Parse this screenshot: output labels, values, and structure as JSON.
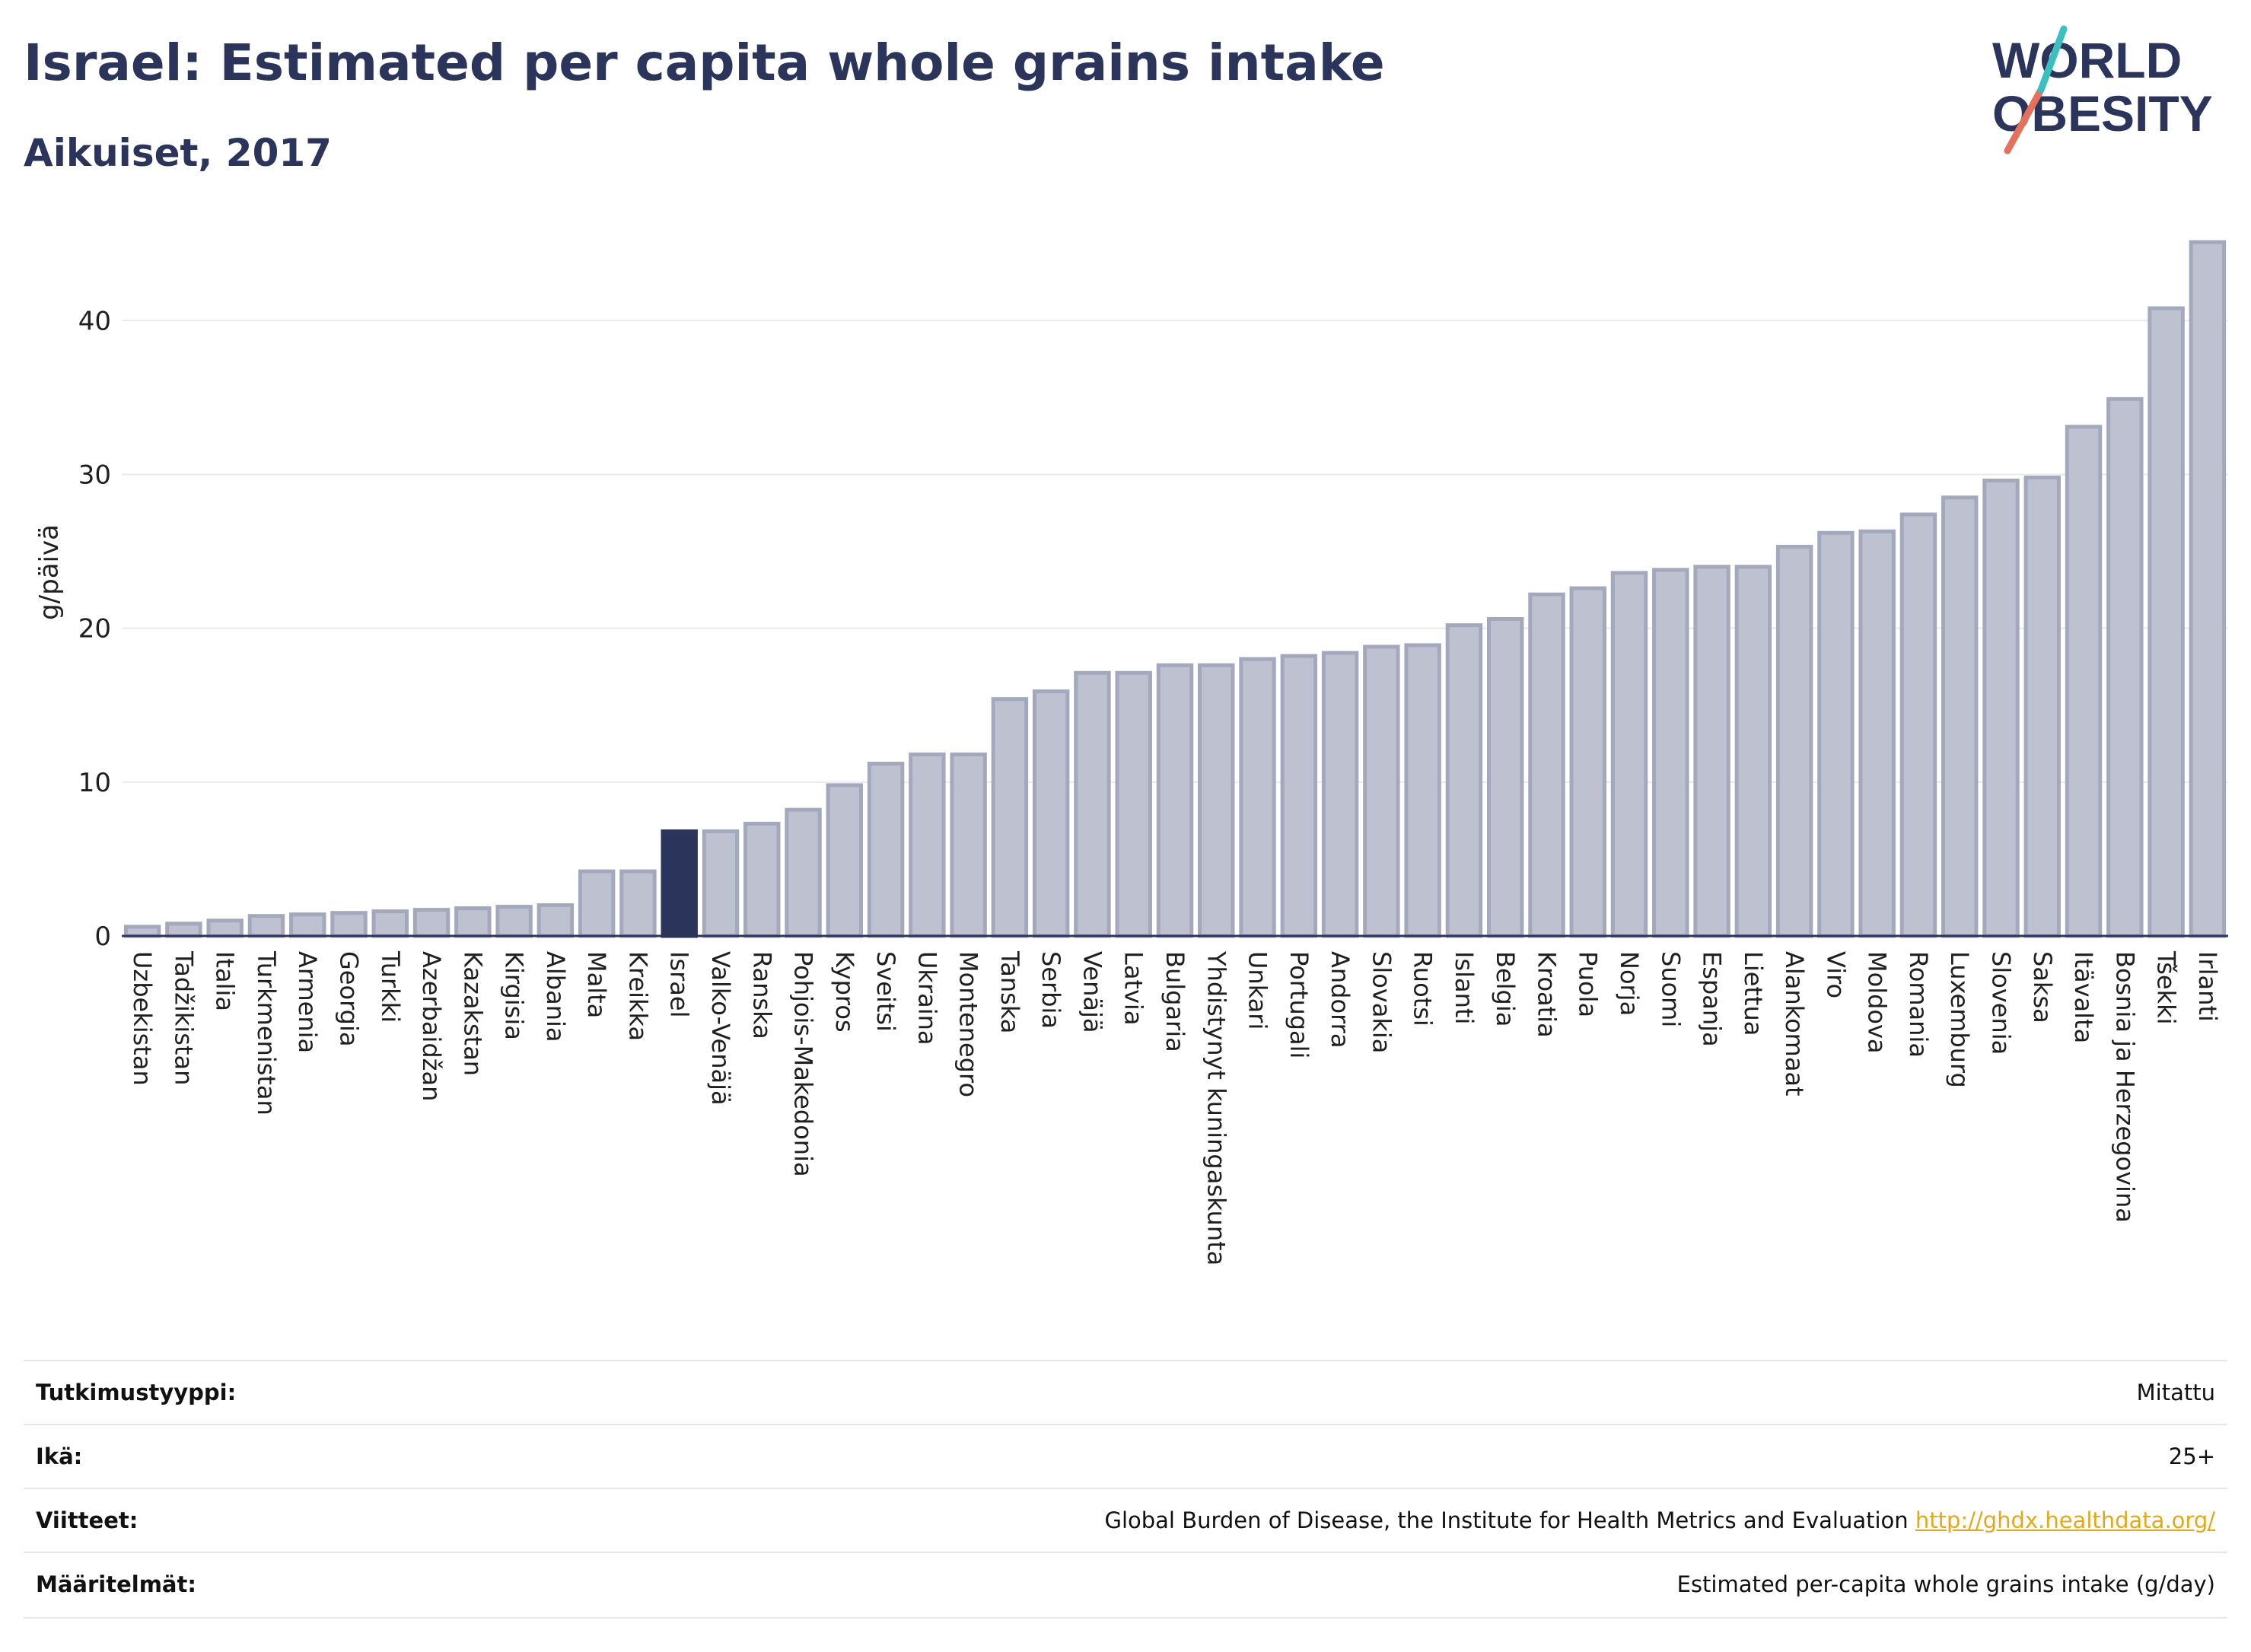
{
  "header": {
    "title": "Israel: Estimated per capita whole grains intake",
    "subtitle": "Aikuiset, 2017"
  },
  "logo": {
    "line1": "WORLD",
    "line2": "OBESITY"
  },
  "colors": {
    "highlight": "#2b355c",
    "bar_fill": "#bec1cf",
    "bar_stroke": "#a3a8bd",
    "grid": "#e8e9ee"
  },
  "chart_data": {
    "type": "bar",
    "ylabel": "g/päivä",
    "ylim": [
      0,
      46
    ],
    "yticks": [
      0,
      10,
      20,
      30,
      40
    ],
    "highlight": "Israel",
    "categories": [
      "Uzbekistan",
      "Tadžikistan",
      "Italia",
      "Turkmenistan",
      "Armenia",
      "Georgia",
      "Turkki",
      "Azerbaidžan",
      "Kazakstan",
      "Kirgisia",
      "Albania",
      "Malta",
      "Kreikka",
      "Israel",
      "Valko-Venäjä",
      "Ranska",
      "Pohjois-Makedonia",
      "Kypros",
      "Sveitsi",
      "Ukraina",
      "Montenegro",
      "Tanska",
      "Serbia",
      "Venäjä",
      "Latvia",
      "Bulgaria",
      "Yhdistynyt kuningaskunta",
      "Unkari",
      "Portugali",
      "Andorra",
      "Slovakia",
      "Ruotsi",
      "Islanti",
      "Belgia",
      "Kroatia",
      "Puola",
      "Norja",
      "Suomi",
      "Espanja",
      "Liettua",
      "Alankomaat",
      "Viro",
      "Moldova",
      "Romania",
      "Luxemburg",
      "Slovenia",
      "Saksa",
      "Itävalta",
      "Bosnia ja Herzegovina",
      "Tšekki",
      "Irlanti"
    ],
    "values": [
      0.6,
      0.8,
      1.0,
      1.3,
      1.4,
      1.5,
      1.6,
      1.7,
      1.8,
      1.9,
      2.0,
      4.2,
      4.2,
      6.8,
      6.8,
      7.3,
      8.2,
      9.8,
      11.2,
      11.8,
      11.8,
      15.4,
      15.9,
      17.1,
      17.1,
      17.6,
      17.6,
      18.0,
      18.2,
      18.4,
      18.8,
      18.9,
      20.2,
      20.6,
      22.2,
      22.6,
      23.6,
      23.8,
      24.0,
      24.0,
      25.3,
      26.2,
      26.3,
      27.4,
      28.5,
      29.6,
      29.8,
      33.1,
      34.9,
      40.8,
      45.1
    ]
  },
  "meta": {
    "rows": [
      {
        "label": "Tutkimustyyppi:",
        "value": "Mitattu"
      },
      {
        "label": "Ikä:",
        "value": "25+"
      },
      {
        "label": "Viitteet:",
        "value": "Global Burden of Disease, the Institute for Health Metrics and Evaluation",
        "link": "http://ghdx.healthdata.org/"
      },
      {
        "label": "Määritelmät:",
        "value": "Estimated per-capita whole grains intake (g/day)"
      }
    ]
  }
}
